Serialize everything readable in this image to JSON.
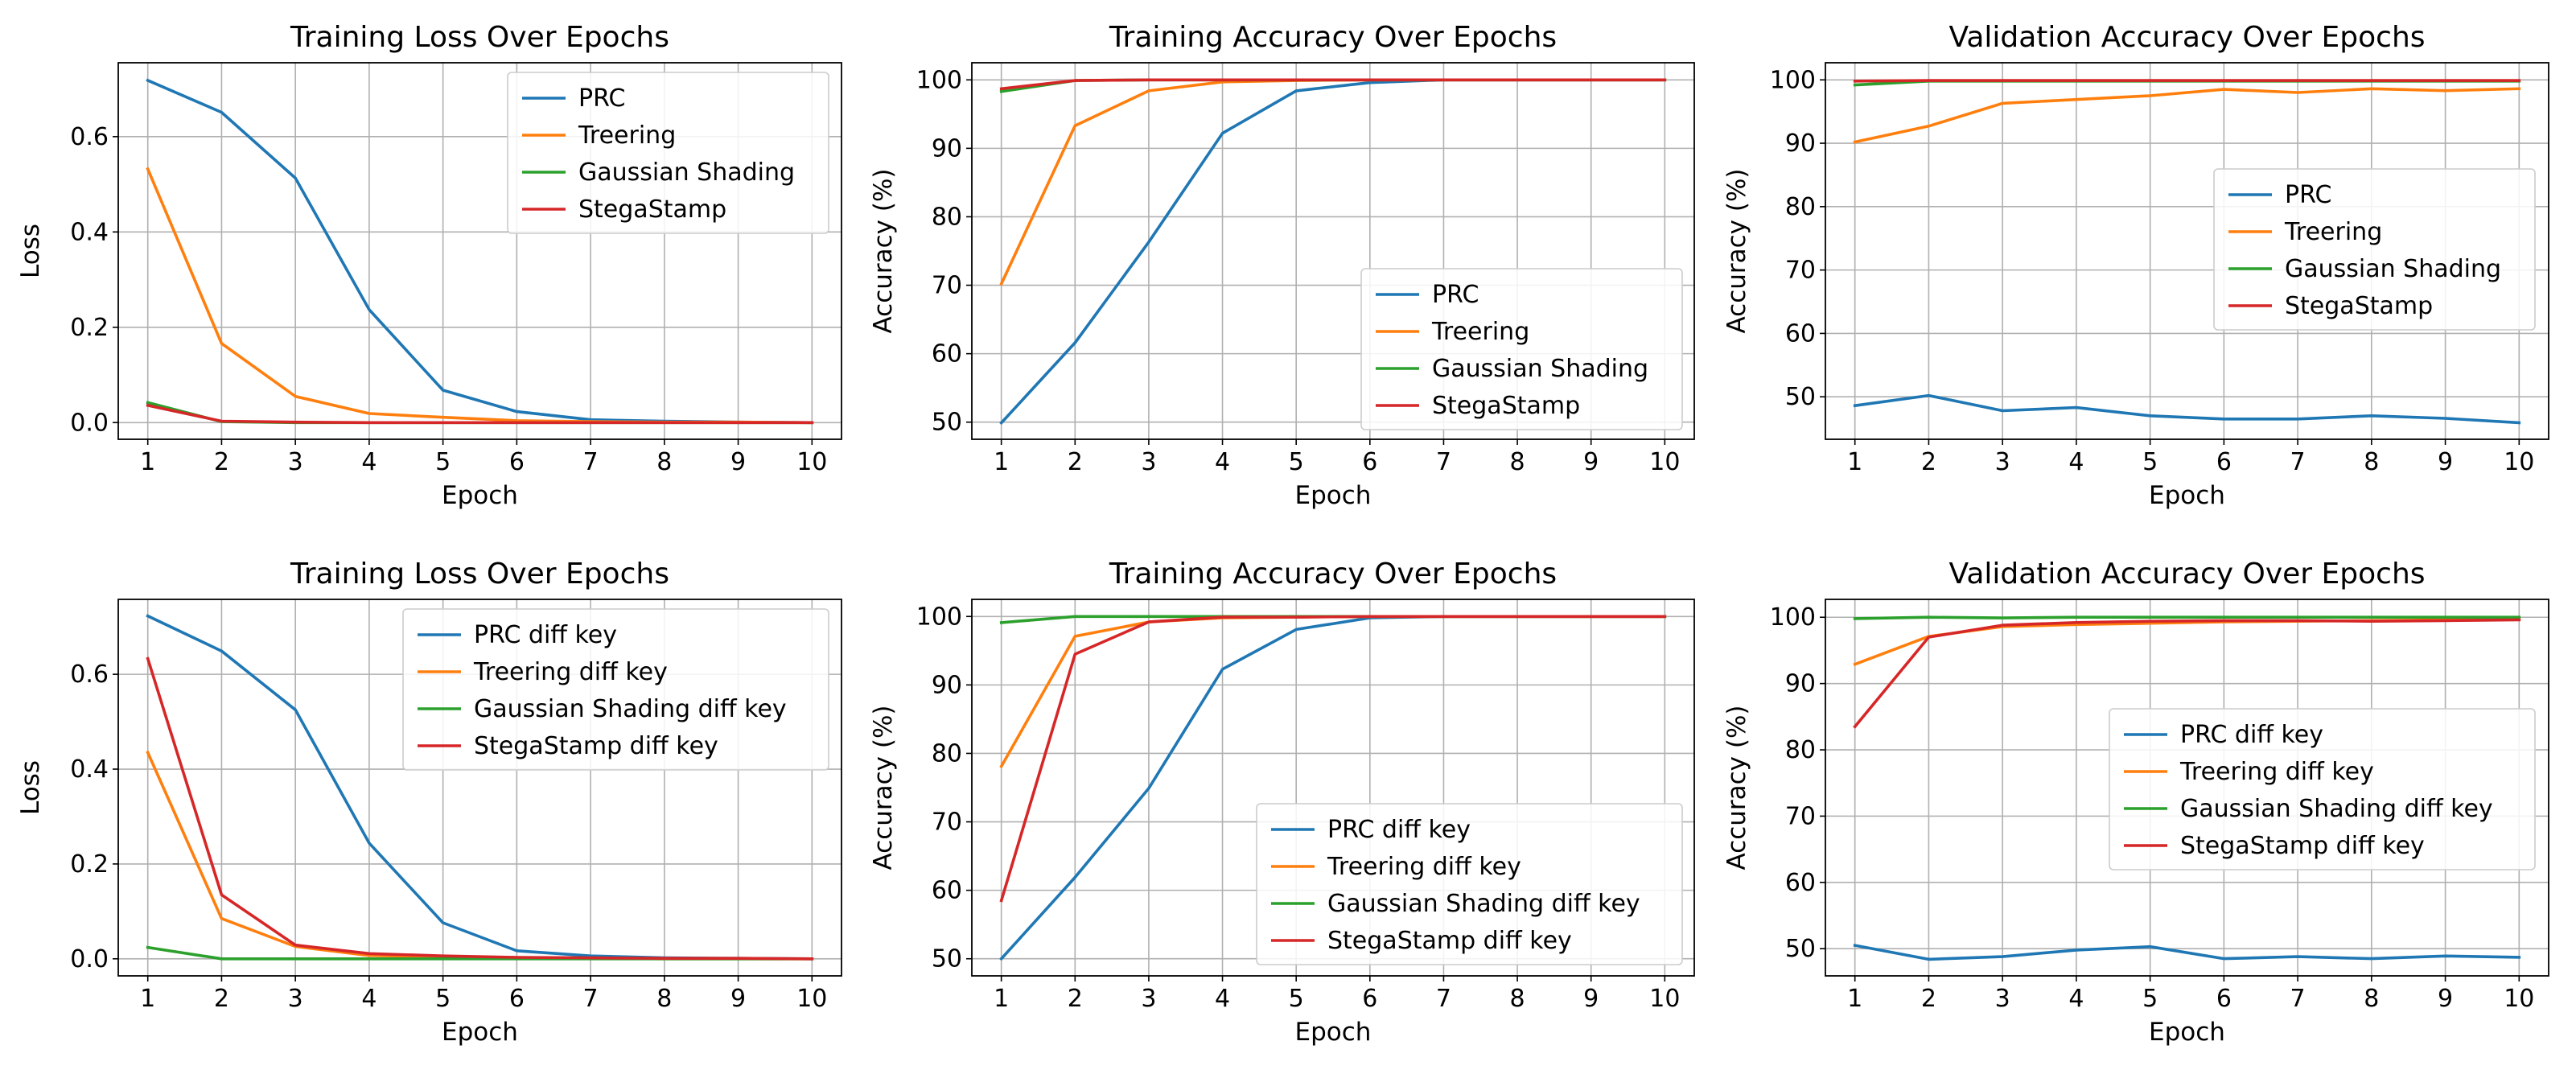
{
  "colors": {
    "PRC": "#1f77b4",
    "Treering": "#ff7f0e",
    "Gaussian": "#2ca02c",
    "StegaStamp": "#d62728",
    "grid": "#b0b0b0",
    "axes": "#000000",
    "legend_border": "#cccccc"
  },
  "chart_data": [
    {
      "type": "line",
      "title": "Training Loss Over Epochs",
      "xlabel": "Epoch",
      "ylabel": "Loss",
      "x": [
        1,
        2,
        3,
        4,
        5,
        6,
        7,
        8,
        9,
        10
      ],
      "xlim": [
        0.6,
        10.4
      ],
      "ylim": [
        -0.035,
        0.755
      ],
      "yticks": [
        0.0,
        0.2,
        0.4,
        0.6
      ],
      "ytick_labels": [
        "0.0",
        "0.2",
        "0.4",
        "0.6"
      ],
      "xtick_labels": [
        "1",
        "2",
        "3",
        "4",
        "5",
        "6",
        "7",
        "8",
        "9",
        "10"
      ],
      "grid": true,
      "legend_loc": "upper right",
      "series": [
        {
          "name": "PRC",
          "color": "#1f77b4",
          "values": [
            0.718,
            0.651,
            0.513,
            0.237,
            0.068,
            0.023,
            0.006,
            0.003,
            0.001,
            0.0
          ]
        },
        {
          "name": "Treering",
          "color": "#ff7f0e",
          "values": [
            0.532,
            0.166,
            0.055,
            0.019,
            0.011,
            0.004,
            0.002,
            0.001,
            0.001,
            0.0
          ]
        },
        {
          "name": "Gaussian Shading",
          "color": "#2ca02c",
          "values": [
            0.042,
            0.002,
            0.0,
            0.0,
            0.0,
            0.0,
            0.0,
            0.0,
            0.0,
            0.0
          ]
        },
        {
          "name": "StegaStamp",
          "color": "#d62728",
          "values": [
            0.036,
            0.003,
            0.001,
            0.0,
            0.0,
            0.0,
            0.0,
            0.0,
            0.0,
            0.0
          ]
        }
      ]
    },
    {
      "type": "line",
      "title": "Training Accuracy Over Epochs",
      "xlabel": "Epoch",
      "ylabel": "Accuracy (%)",
      "x": [
        1,
        2,
        3,
        4,
        5,
        6,
        7,
        8,
        9,
        10
      ],
      "xlim": [
        0.6,
        10.4
      ],
      "ylim": [
        47.5,
        102.5
      ],
      "yticks": [
        50,
        60,
        70,
        80,
        90,
        100
      ],
      "ytick_labels": [
        "50",
        "60",
        "70",
        "80",
        "90",
        "100"
      ],
      "xtick_labels": [
        "1",
        "2",
        "3",
        "4",
        "5",
        "6",
        "7",
        "8",
        "9",
        "10"
      ],
      "grid": true,
      "legend_loc": "lower right",
      "series": [
        {
          "name": "PRC",
          "color": "#1f77b4",
          "values": [
            49.9,
            61.6,
            76.3,
            92.2,
            98.4,
            99.6,
            100.0,
            100.0,
            100.0,
            100.0
          ]
        },
        {
          "name": "Treering",
          "color": "#ff7f0e",
          "values": [
            70.2,
            93.3,
            98.4,
            99.7,
            99.9,
            100.0,
            100.0,
            100.0,
            100.0,
            100.0
          ]
        },
        {
          "name": "Gaussian Shading",
          "color": "#2ca02c",
          "values": [
            98.3,
            99.9,
            100.0,
            100.0,
            100.0,
            100.0,
            100.0,
            100.0,
            100.0,
            100.0
          ]
        },
        {
          "name": "StegaStamp",
          "color": "#d62728",
          "values": [
            98.7,
            99.9,
            100.0,
            100.0,
            100.0,
            100.0,
            100.0,
            100.0,
            100.0,
            100.0
          ]
        }
      ]
    },
    {
      "type": "line",
      "title": "Validation Accuracy Over Epochs",
      "xlabel": "Epoch",
      "ylabel": "Accuracy (%)",
      "x": [
        1,
        2,
        3,
        4,
        5,
        6,
        7,
        8,
        9,
        10
      ],
      "xlim": [
        0.6,
        10.4
      ],
      "ylim": [
        43.3,
        102.7
      ],
      "yticks": [
        50,
        60,
        70,
        80,
        90,
        100
      ],
      "ytick_labels": [
        "50",
        "60",
        "70",
        "80",
        "90",
        "100"
      ],
      "xtick_labels": [
        "1",
        "2",
        "3",
        "4",
        "5",
        "6",
        "7",
        "8",
        "9",
        "10"
      ],
      "grid": true,
      "legend_loc": "center right",
      "series": [
        {
          "name": "PRC",
          "color": "#1f77b4",
          "values": [
            48.6,
            50.2,
            47.8,
            48.3,
            47.0,
            46.5,
            46.5,
            47.0,
            46.6,
            45.9
          ]
        },
        {
          "name": "Treering",
          "color": "#ff7f0e",
          "values": [
            90.2,
            92.7,
            96.3,
            96.9,
            97.5,
            98.5,
            98.0,
            98.6,
            98.3,
            98.6
          ]
        },
        {
          "name": "Gaussian Shading",
          "color": "#2ca02c",
          "values": [
            99.2,
            99.8,
            99.8,
            99.8,
            99.8,
            99.8,
            99.8,
            99.8,
            99.8,
            99.8
          ]
        },
        {
          "name": "StegaStamp",
          "color": "#d62728",
          "values": [
            99.8,
            99.9,
            99.9,
            99.9,
            99.9,
            99.9,
            99.9,
            99.9,
            99.9,
            99.9
          ]
        }
      ]
    },
    {
      "type": "line",
      "title": "Training Loss Over Epochs",
      "xlabel": "Epoch",
      "ylabel": "Loss",
      "x": [
        1,
        2,
        3,
        4,
        5,
        6,
        7,
        8,
        9,
        10
      ],
      "xlim": [
        0.6,
        10.4
      ],
      "ylim": [
        -0.036,
        0.758
      ],
      "yticks": [
        0.0,
        0.2,
        0.4,
        0.6
      ],
      "ytick_labels": [
        "0.0",
        "0.2",
        "0.4",
        "0.6"
      ],
      "xtick_labels": [
        "1",
        "2",
        "3",
        "4",
        "5",
        "6",
        "7",
        "8",
        "9",
        "10"
      ],
      "grid": true,
      "legend_loc": "upper right",
      "series": [
        {
          "name": "PRC diff key",
          "color": "#1f77b4",
          "values": [
            0.723,
            0.649,
            0.525,
            0.244,
            0.076,
            0.017,
            0.006,
            0.002,
            0.001,
            0.0
          ]
        },
        {
          "name": "Treering diff key",
          "color": "#ff7f0e",
          "values": [
            0.435,
            0.085,
            0.026,
            0.007,
            0.004,
            0.002,
            0.001,
            0.0,
            0.0,
            0.0
          ]
        },
        {
          "name": "Gaussian Shading diff key",
          "color": "#2ca02c",
          "values": [
            0.024,
            0.0,
            0.0,
            0.0,
            0.0,
            0.0,
            0.0,
            0.0,
            0.0,
            0.0
          ]
        },
        {
          "name": "StegaStamp diff key",
          "color": "#d62728",
          "values": [
            0.633,
            0.135,
            0.029,
            0.011,
            0.006,
            0.003,
            0.002,
            0.001,
            0.001,
            0.0
          ]
        }
      ]
    },
    {
      "type": "line",
      "title": "Training Accuracy Over Epochs",
      "xlabel": "Epoch",
      "ylabel": "Accuracy (%)",
      "x": [
        1,
        2,
        3,
        4,
        5,
        6,
        7,
        8,
        9,
        10
      ],
      "xlim": [
        0.6,
        10.4
      ],
      "ylim": [
        47.5,
        102.5
      ],
      "yticks": [
        50,
        60,
        70,
        80,
        90,
        100
      ],
      "ytick_labels": [
        "50",
        "60",
        "70",
        "80",
        "90",
        "100"
      ],
      "xtick_labels": [
        "1",
        "2",
        "3",
        "4",
        "5",
        "6",
        "7",
        "8",
        "9",
        "10"
      ],
      "grid": true,
      "legend_loc": "lower right",
      "series": [
        {
          "name": "PRC diff key",
          "color": "#1f77b4",
          "values": [
            50.0,
            61.9,
            74.9,
            92.3,
            98.1,
            99.8,
            100.0,
            100.0,
            100.0,
            100.0
          ]
        },
        {
          "name": "Treering diff key",
          "color": "#ff7f0e",
          "values": [
            78.1,
            97.1,
            99.2,
            99.8,
            99.9,
            100.0,
            100.0,
            100.0,
            100.0,
            100.0
          ]
        },
        {
          "name": "Gaussian Shading diff key",
          "color": "#2ca02c",
          "values": [
            99.1,
            100.0,
            100.0,
            100.0,
            100.0,
            100.0,
            100.0,
            100.0,
            100.0,
            100.0
          ]
        },
        {
          "name": "StegaStamp diff key",
          "color": "#d62728",
          "values": [
            58.5,
            94.5,
            99.2,
            99.9,
            99.9,
            100.0,
            100.0,
            100.0,
            100.0,
            100.0
          ]
        }
      ]
    },
    {
      "type": "line",
      "title": "Validation Accuracy Over Epochs",
      "xlabel": "Epoch",
      "ylabel": "Accuracy (%)",
      "x": [
        1,
        2,
        3,
        4,
        5,
        6,
        7,
        8,
        9,
        10
      ],
      "xlim": [
        0.6,
        10.4
      ],
      "ylim": [
        45.9,
        102.7
      ],
      "yticks": [
        50,
        60,
        70,
        80,
        90,
        100
      ],
      "ytick_labels": [
        "50",
        "60",
        "70",
        "80",
        "90",
        "100"
      ],
      "xtick_labels": [
        "1",
        "2",
        "3",
        "4",
        "5",
        "6",
        "7",
        "8",
        "9",
        "10"
      ],
      "grid": true,
      "legend_loc": "center right",
      "series": [
        {
          "name": "PRC diff key",
          "color": "#1f77b4",
          "values": [
            50.5,
            48.4,
            48.8,
            49.8,
            50.3,
            48.5,
            48.8,
            48.5,
            48.9,
            48.7
          ]
        },
        {
          "name": "Treering diff key",
          "color": "#ff7f0e",
          "values": [
            92.9,
            97.1,
            98.6,
            98.9,
            99.1,
            99.3,
            99.4,
            99.5,
            99.6,
            99.7
          ]
        },
        {
          "name": "Gaussian Shading diff key",
          "color": "#2ca02c",
          "values": [
            99.8,
            100.0,
            99.9,
            100.0,
            100.0,
            100.0,
            100.0,
            100.0,
            100.0,
            100.0
          ]
        },
        {
          "name": "StegaStamp diff key",
          "color": "#d62728",
          "values": [
            83.5,
            97.0,
            98.8,
            99.2,
            99.4,
            99.5,
            99.5,
            99.4,
            99.5,
            99.6
          ]
        }
      ]
    }
  ]
}
